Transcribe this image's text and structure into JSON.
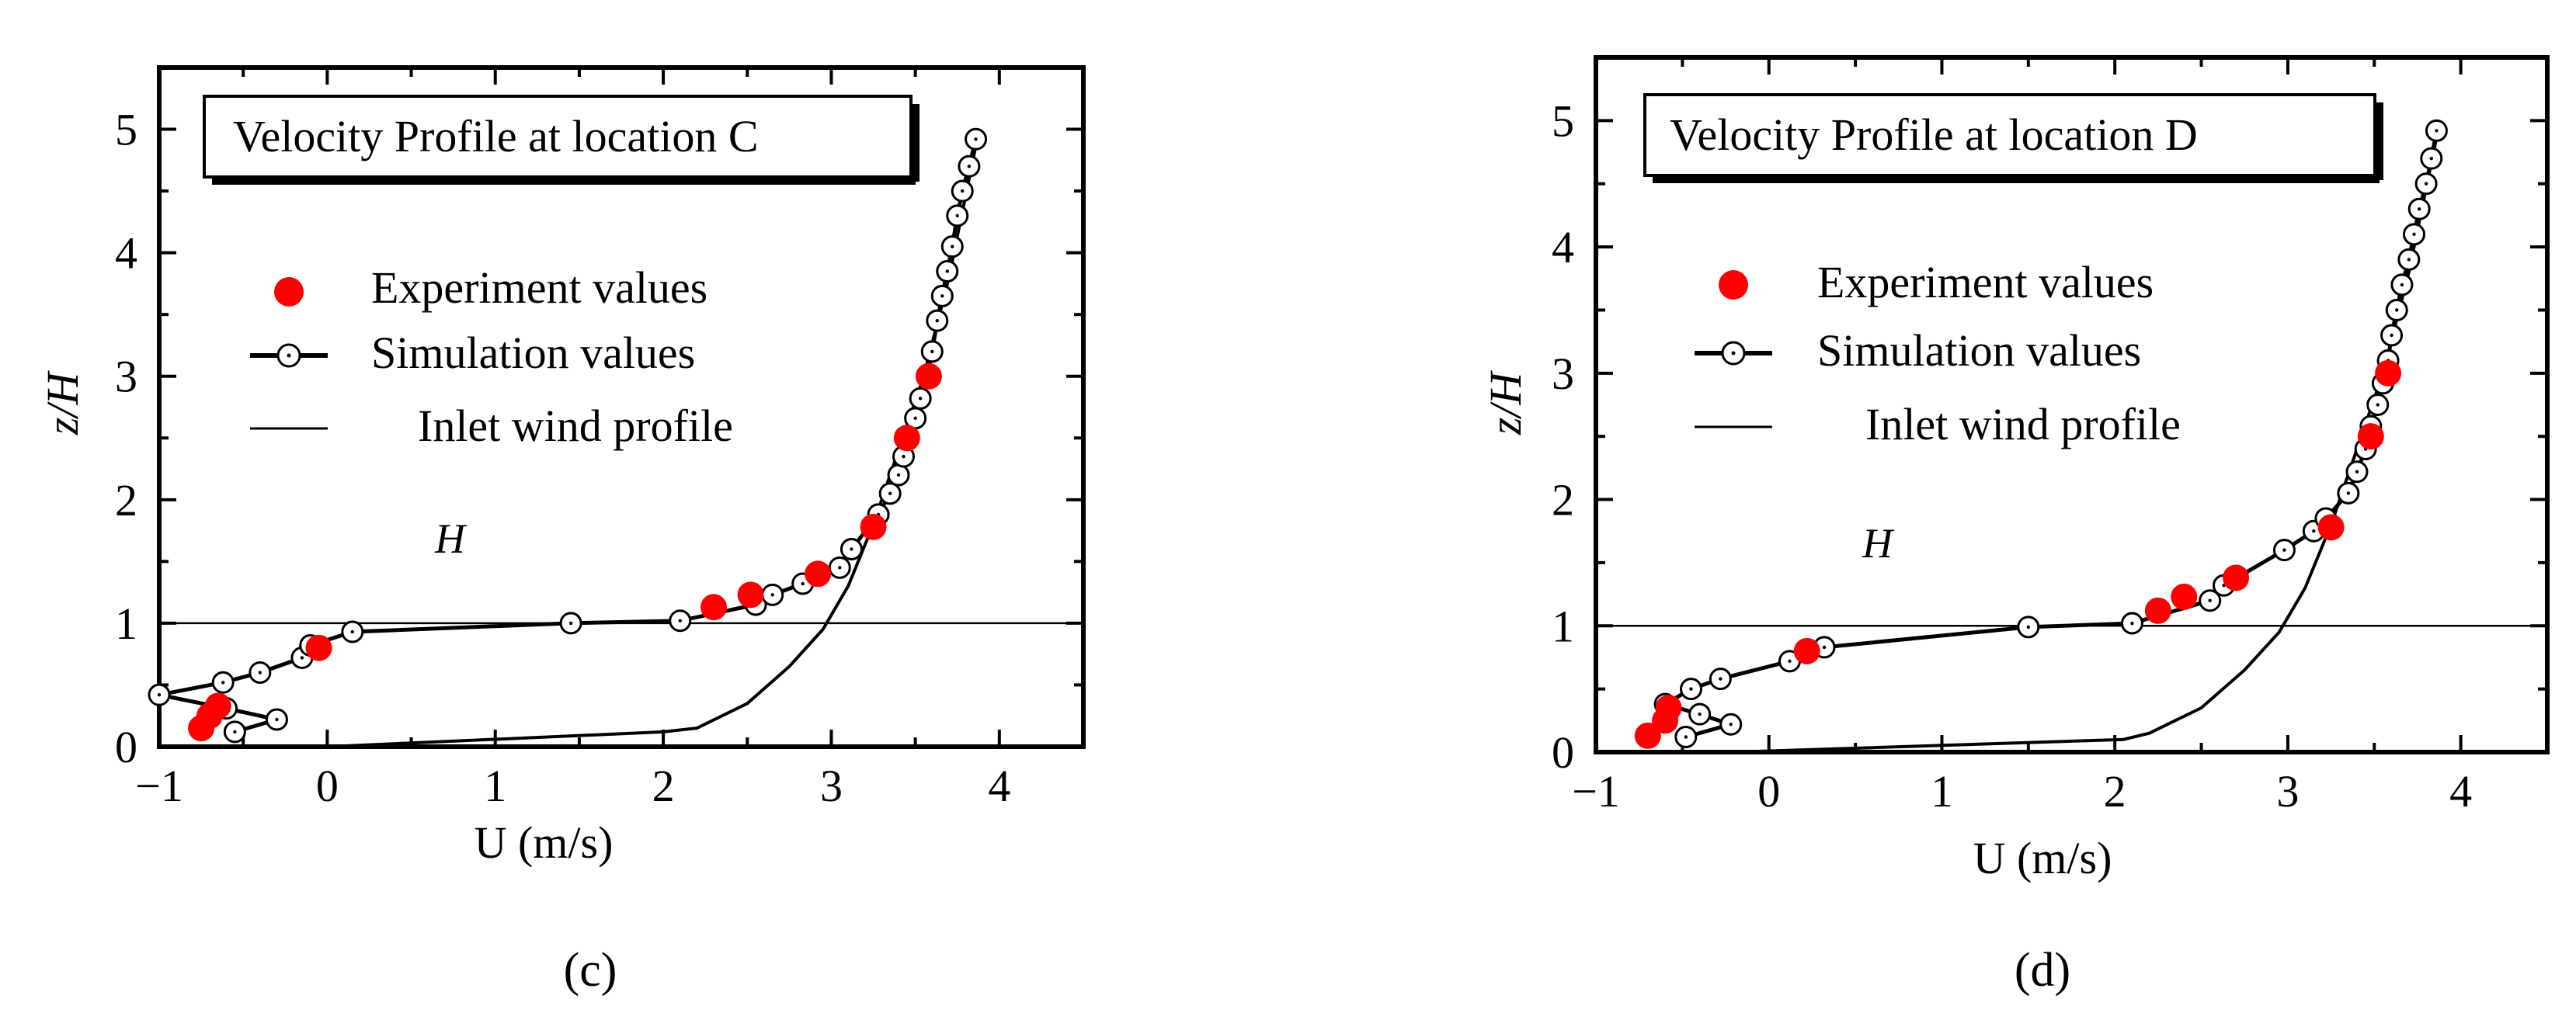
{
  "colors": {
    "experiment": "#ff0000",
    "simulation_line": "#000000",
    "inlet_line": "#000000",
    "marker_fill": "#ffffff"
  },
  "chart_data": [
    {
      "type": "line",
      "title": "Velocity Profile at location C",
      "caption": "(c)",
      "xlabel": "U (m/s)",
      "ylabel": "z/H",
      "xlim": [
        -1,
        4.5
      ],
      "ylim": [
        0,
        5.5
      ],
      "xticks": [
        -1,
        0,
        1,
        2,
        3,
        4
      ],
      "yticks": [
        0,
        1,
        2,
        3,
        4,
        5
      ],
      "xtick_labels": [
        "−1",
        "0",
        "1",
        "2",
        "3",
        "4"
      ],
      "ytick_labels": [
        "0",
        "1",
        "2",
        "3",
        "4",
        "5"
      ],
      "legend": [
        "Experiment values",
        "Simulation values",
        "Inlet wind profile"
      ],
      "annotation": "H",
      "reference_line_y": 1,
      "series": [
        {
          "name": "Experiment values",
          "points": [
            [
              -0.75,
              0.15
            ],
            [
              -0.7,
              0.25
            ],
            [
              -0.65,
              0.33
            ],
            [
              -0.05,
              0.8
            ],
            [
              2.3,
              1.13
            ],
            [
              2.52,
              1.23
            ],
            [
              2.92,
              1.4
            ],
            [
              3.25,
              1.78
            ],
            [
              3.45,
              2.5
            ],
            [
              3.58,
              3.0
            ]
          ]
        },
        {
          "name": "Simulation values",
          "points": [
            [
              -0.55,
              0.12
            ],
            [
              -0.3,
              0.22
            ],
            [
              -0.6,
              0.31
            ],
            [
              -1.0,
              0.42
            ],
            [
              -0.62,
              0.52
            ],
            [
              -0.4,
              0.6
            ],
            [
              -0.15,
              0.72
            ],
            [
              -0.1,
              0.82
            ],
            [
              0.15,
              0.93
            ],
            [
              1.45,
              1.0
            ],
            [
              2.1,
              1.02
            ],
            [
              2.55,
              1.15
            ],
            [
              2.65,
              1.23
            ],
            [
              2.83,
              1.32
            ],
            [
              3.05,
              1.45
            ],
            [
              3.12,
              1.6
            ],
            [
              3.28,
              1.88
            ],
            [
              3.35,
              2.05
            ],
            [
              3.4,
              2.2
            ],
            [
              3.43,
              2.35
            ],
            [
              3.46,
              2.5
            ],
            [
              3.5,
              2.66
            ],
            [
              3.53,
              2.82
            ],
            [
              3.57,
              3.0
            ],
            [
              3.6,
              3.2
            ],
            [
              3.63,
              3.45
            ],
            [
              3.66,
              3.65
            ],
            [
              3.69,
              3.85
            ],
            [
              3.72,
              4.05
            ],
            [
              3.75,
              4.3
            ],
            [
              3.78,
              4.5
            ],
            [
              3.82,
              4.7
            ],
            [
              3.86,
              4.92
            ]
          ]
        },
        {
          "name": "Inlet wind profile",
          "points": [
            [
              0,
              0
            ],
            [
              2.0,
              0.12
            ],
            [
              2.2,
              0.15
            ],
            [
              2.5,
              0.35
            ],
            [
              2.75,
              0.65
            ],
            [
              2.95,
              0.95
            ],
            [
              3.1,
              1.3
            ],
            [
              3.25,
              1.8
            ],
            [
              3.4,
              2.4
            ],
            [
              3.55,
              3.0
            ],
            [
              3.7,
              3.8
            ],
            [
              3.88,
              5.0
            ]
          ]
        }
      ]
    },
    {
      "type": "line",
      "title": "Velocity Profile at location D",
      "caption": "(d)",
      "xlabel": "U (m/s)",
      "ylabel": "z/H",
      "xlim": [
        -1,
        4.5
      ],
      "ylim": [
        0,
        5.5
      ],
      "xticks": [
        -1,
        0,
        1,
        2,
        3,
        4
      ],
      "yticks": [
        0,
        1,
        2,
        3,
        4,
        5
      ],
      "xtick_labels": [
        "−1",
        "0",
        "1",
        "2",
        "3",
        "4"
      ],
      "ytick_labels": [
        "0",
        "1",
        "2",
        "3",
        "4",
        "5"
      ],
      "legend": [
        "Experiment values",
        "Simulation values",
        "Inlet wind profile"
      ],
      "annotation": "H",
      "reference_line_y": 1,
      "series": [
        {
          "name": "Experiment values",
          "points": [
            [
              -0.7,
              0.13
            ],
            [
              -0.6,
              0.25
            ],
            [
              -0.58,
              0.35
            ],
            [
              0.22,
              0.8
            ],
            [
              2.25,
              1.12
            ],
            [
              2.4,
              1.23
            ],
            [
              2.7,
              1.38
            ],
            [
              3.25,
              1.78
            ],
            [
              3.48,
              2.5
            ],
            [
              3.58,
              3.0
            ]
          ]
        },
        {
          "name": "Simulation values",
          "points": [
            [
              -0.48,
              0.12
            ],
            [
              -0.22,
              0.22
            ],
            [
              -0.4,
              0.3
            ],
            [
              -0.6,
              0.38
            ],
            [
              -0.45,
              0.5
            ],
            [
              -0.28,
              0.58
            ],
            [
              0.12,
              0.72
            ],
            [
              0.32,
              0.83
            ],
            [
              1.5,
              0.99
            ],
            [
              2.1,
              1.02
            ],
            [
              2.55,
              1.2
            ],
            [
              2.63,
              1.32
            ],
            [
              2.98,
              1.6
            ],
            [
              3.15,
              1.75
            ],
            [
              3.22,
              1.85
            ],
            [
              3.35,
              2.05
            ],
            [
              3.4,
              2.22
            ],
            [
              3.45,
              2.4
            ],
            [
              3.48,
              2.58
            ],
            [
              3.52,
              2.75
            ],
            [
              3.55,
              2.92
            ],
            [
              3.58,
              3.1
            ],
            [
              3.6,
              3.3
            ],
            [
              3.63,
              3.5
            ],
            [
              3.66,
              3.7
            ],
            [
              3.7,
              3.9
            ],
            [
              3.73,
              4.1
            ],
            [
              3.76,
              4.3
            ],
            [
              3.8,
              4.5
            ],
            [
              3.83,
              4.7
            ],
            [
              3.86,
              4.92
            ]
          ]
        },
        {
          "name": "Inlet wind profile",
          "points": [
            [
              -0.2,
              0
            ],
            [
              2.05,
              0.1
            ],
            [
              2.2,
              0.15
            ],
            [
              2.5,
              0.35
            ],
            [
              2.75,
              0.65
            ],
            [
              2.95,
              0.95
            ],
            [
              3.1,
              1.3
            ],
            [
              3.25,
              1.8
            ],
            [
              3.4,
              2.4
            ],
            [
              3.55,
              3.0
            ],
            [
              3.7,
              3.8
            ],
            [
              3.88,
              5.0
            ]
          ]
        }
      ]
    }
  ]
}
